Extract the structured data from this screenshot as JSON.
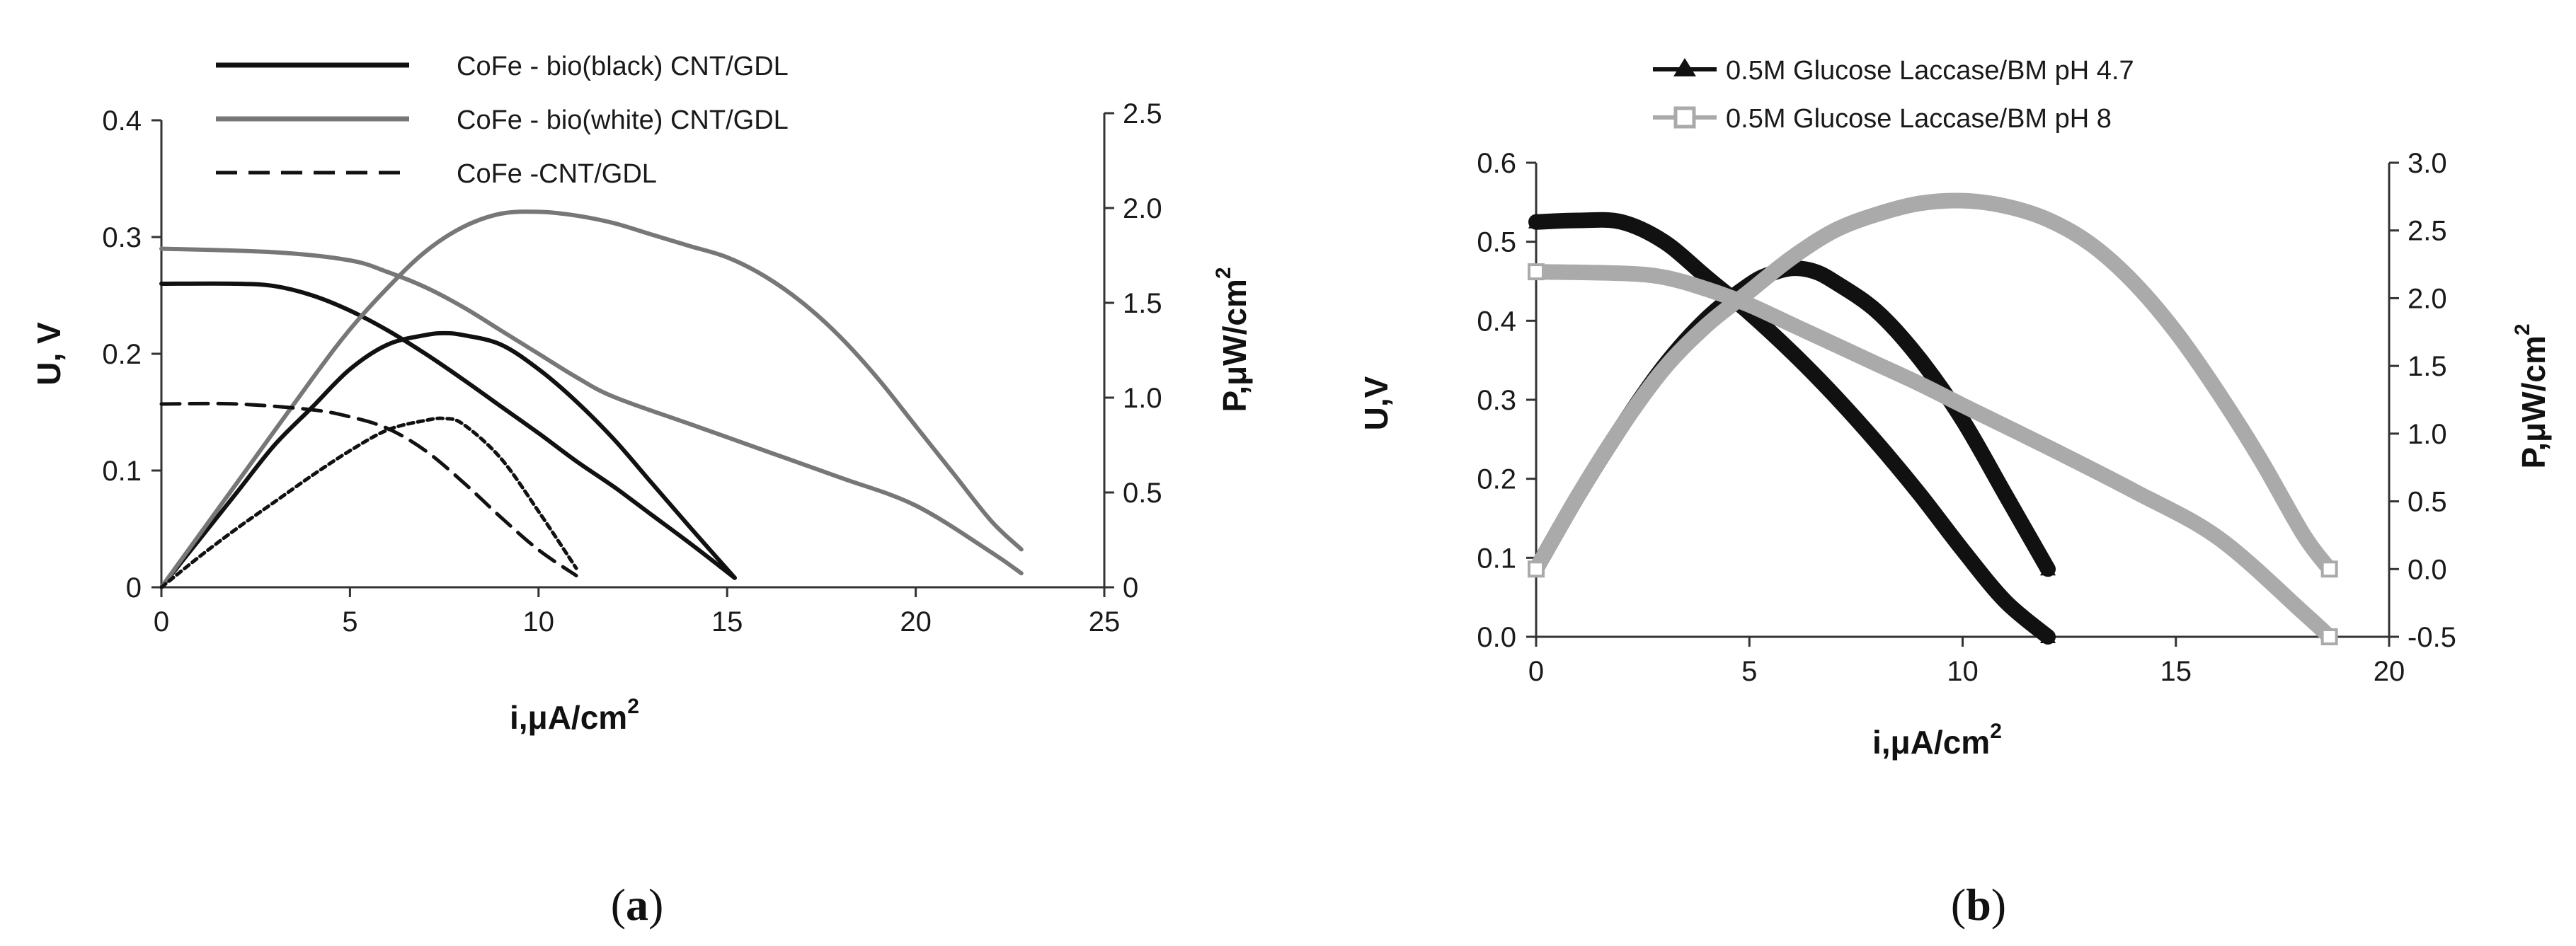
{
  "chart_data": [
    {
      "type": "line",
      "caption_letter": "a",
      "xlabel": "i,μA/cm",
      "xlabel_sup": "2",
      "ylabel": "U, V",
      "y2label": "P,μW/cm",
      "y2label_sup": "2",
      "xlim": [
        0,
        25
      ],
      "ylim": [
        0,
        0.4
      ],
      "y2lim": [
        0,
        2.5
      ],
      "x_ticks": [
        0,
        5,
        10,
        15,
        20,
        25
      ],
      "x_tick_labels": [
        "0",
        "5",
        "10",
        "15",
        "20",
        "25"
      ],
      "y_ticks": [
        0,
        0.1,
        0.2,
        0.3,
        0.4
      ],
      "y_tick_labels": [
        "0",
        "0.1",
        "0.2",
        "0.3",
        "0.4"
      ],
      "y2_ticks": [
        0,
        0.5,
        1.0,
        1.5,
        2.0,
        2.5
      ],
      "y2_tick_labels": [
        "0",
        "0.5",
        "1.0",
        "1.5",
        "2.0",
        "2.5"
      ],
      "legend_position": "top",
      "series": [
        {
          "name": "CoFe - bio(black) CNT/GDL",
          "kind": "voltage",
          "axis": "y",
          "color": "#111111",
          "dash": "solid",
          "x": [
            0,
            2,
            3,
            4,
            5,
            6,
            7,
            8,
            9,
            10,
            11,
            12,
            13,
            14,
            15.2
          ],
          "y": [
            0.26,
            0.26,
            0.258,
            0.25,
            0.237,
            0.22,
            0.2,
            0.178,
            0.155,
            0.132,
            0.108,
            0.086,
            0.062,
            0.038,
            0.008
          ]
        },
        {
          "name": "CoFe - bio(black) CNT/GDL",
          "kind": "power",
          "axis": "y2",
          "color": "#111111",
          "dash": "solid",
          "x": [
            0,
            1,
            2,
            3,
            4,
            5,
            6,
            7,
            7.5,
            8,
            9,
            10,
            11,
            12,
            13,
            14,
            15.2
          ],
          "y": [
            0,
            0.25,
            0.5,
            0.75,
            0.95,
            1.15,
            1.28,
            1.33,
            1.34,
            1.33,
            1.28,
            1.15,
            0.98,
            0.78,
            0.55,
            0.32,
            0.05
          ]
        },
        {
          "name": "CoFe - bio(white) CNT/GDL",
          "kind": "voltage",
          "axis": "y",
          "color": "#777777",
          "dash": "solid",
          "x": [
            0,
            3,
            5,
            6,
            7,
            8,
            9,
            10,
            11,
            12,
            14,
            16,
            18,
            20,
            22,
            22.8
          ],
          "y": [
            0.29,
            0.287,
            0.28,
            0.27,
            0.257,
            0.24,
            0.22,
            0.2,
            0.18,
            0.163,
            0.14,
            0.117,
            0.094,
            0.07,
            0.03,
            0.012
          ]
        },
        {
          "name": "CoFe - bio(white) CNT/GDL",
          "kind": "power",
          "axis": "y2",
          "color": "#777777",
          "dash": "solid",
          "x": [
            0,
            2,
            4,
            5,
            6,
            7,
            8,
            9,
            10,
            11,
            12,
            13,
            14,
            15,
            16,
            17,
            18,
            19,
            20,
            21,
            22,
            22.8
          ],
          "y": [
            0,
            0.55,
            1.1,
            1.36,
            1.58,
            1.77,
            1.9,
            1.97,
            1.98,
            1.96,
            1.92,
            1.86,
            1.8,
            1.74,
            1.64,
            1.5,
            1.32,
            1.1,
            0.85,
            0.6,
            0.35,
            0.2
          ]
        },
        {
          "name": "CoFe -CNT/GDL",
          "kind": "voltage",
          "axis": "y",
          "color": "#111111",
          "dash": "dashed",
          "x": [
            0,
            2,
            4,
            5,
            6,
            7,
            8,
            9,
            10,
            11
          ],
          "y": [
            0.157,
            0.157,
            0.152,
            0.146,
            0.136,
            0.117,
            0.09,
            0.06,
            0.032,
            0.01
          ]
        },
        {
          "name": "CoFe -CNT/GDL",
          "kind": "power",
          "axis": "y2",
          "color": "#111111",
          "dash": "dashed",
          "x": [
            0,
            1,
            2,
            3,
            4,
            5,
            6,
            7,
            7.5,
            8,
            9,
            10,
            11
          ],
          "y": [
            0,
            0.16,
            0.31,
            0.45,
            0.59,
            0.72,
            0.83,
            0.88,
            0.89,
            0.86,
            0.68,
            0.4,
            0.1
          ]
        }
      ]
    },
    {
      "type": "line",
      "caption_letter": "b",
      "xlabel": "i,μA/cm",
      "xlabel_sup": "2",
      "ylabel": "U,V",
      "y2label": "P,μW/cm",
      "y2label_sup": "2",
      "xlim": [
        0,
        20
      ],
      "ylim": [
        0,
        0.6
      ],
      "y2lim": [
        -0.5,
        3.0
      ],
      "x_ticks": [
        0,
        5,
        10,
        15,
        20
      ],
      "x_tick_labels": [
        "0",
        "5",
        "10",
        "15",
        "20"
      ],
      "y_ticks": [
        0,
        0.1,
        0.2,
        0.3,
        0.4,
        0.5,
        0.6
      ],
      "y_tick_labels": [
        "0.0",
        "0.1",
        "0.2",
        "0.3",
        "0.4",
        "0.5",
        "0.6"
      ],
      "y2_ticks": [
        -0.5,
        0,
        0.5,
        1.0,
        1.5,
        2.0,
        2.5,
        3.0
      ],
      "y2_tick_labels": [
        "-0.5",
        "0.0",
        "0.5",
        "1.0",
        "1.5",
        "2.0",
        "2.5",
        "3.0"
      ],
      "legend_position": "top",
      "series": [
        {
          "name": "0.5M Glucose Laccase/BM pH 4.7",
          "kind": "voltage",
          "axis": "y",
          "color": "#111111",
          "marker": "triangle",
          "x": [
            0,
            1,
            2,
            3,
            4,
            5,
            6,
            7,
            8,
            9,
            10,
            11,
            12
          ],
          "y": [
            0.525,
            0.527,
            0.525,
            0.5,
            0.455,
            0.41,
            0.36,
            0.305,
            0.245,
            0.18,
            0.11,
            0.045,
            0.0
          ]
        },
        {
          "name": "0.5M Glucose Laccase/BM pH 4.7",
          "kind": "power",
          "axis": "y2",
          "color": "#111111",
          "marker": "triangle",
          "x": [
            0,
            1,
            2,
            3,
            4,
            5,
            5.5,
            6,
            6.5,
            7,
            8,
            9,
            10,
            11,
            12
          ],
          "y": [
            0,
            0.55,
            1.05,
            1.5,
            1.85,
            2.1,
            2.18,
            2.22,
            2.2,
            2.12,
            1.9,
            1.55,
            1.1,
            0.55,
            0.0
          ]
        },
        {
          "name": "0.5M Glucose Laccase/BM pH 8",
          "kind": "voltage",
          "axis": "y",
          "color": "#aaaaaa",
          "marker": "square",
          "x": [
            0,
            2,
            3,
            4,
            5,
            6,
            7,
            8,
            9,
            10,
            12,
            14,
            16,
            18,
            18.6
          ],
          "y": [
            0.462,
            0.46,
            0.455,
            0.44,
            0.42,
            0.395,
            0.37,
            0.345,
            0.32,
            0.293,
            0.24,
            0.185,
            0.125,
            0.03,
            0.0
          ]
        },
        {
          "name": "0.5M Glucose Laccase/BM pH 8",
          "kind": "power",
          "axis": "y2",
          "color": "#aaaaaa",
          "marker": "square",
          "x": [
            0,
            1,
            2,
            3,
            4,
            5,
            6,
            7,
            8,
            9,
            10,
            11,
            12,
            13,
            14,
            15,
            16,
            17,
            18,
            18.6
          ],
          "y": [
            0,
            0.55,
            1.05,
            1.48,
            1.8,
            2.05,
            2.3,
            2.5,
            2.62,
            2.7,
            2.72,
            2.68,
            2.58,
            2.4,
            2.12,
            1.75,
            1.3,
            0.8,
            0.25,
            0.0
          ]
        }
      ]
    }
  ]
}
